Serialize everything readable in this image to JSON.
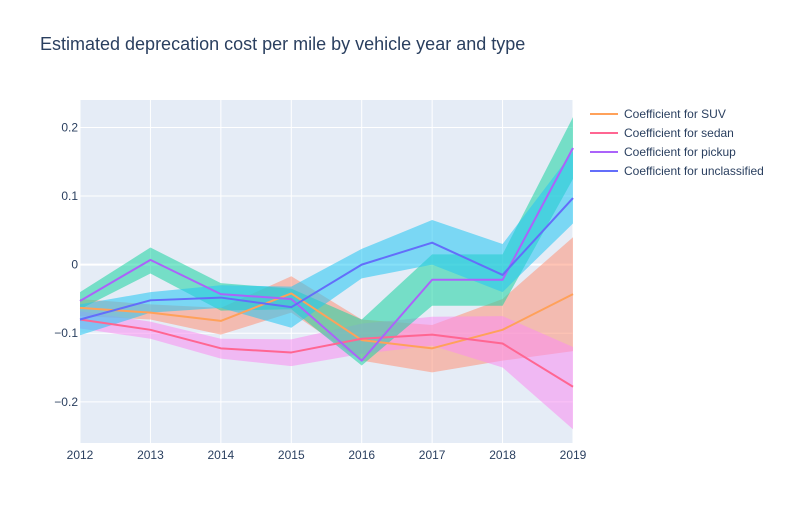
{
  "colors": {
    "plot_bg": "#e5ecf6",
    "grid": "#ffffff",
    "text": "#2a3f5f",
    "series": [
      "#ffa15a",
      "#ff6692",
      "#ab63fa",
      "#636efa"
    ],
    "bands": [
      "#ff9478",
      "#f98ef0",
      "#19d3a1",
      "#23c6f2"
    ]
  },
  "chart_data": {
    "type": "line",
    "title": "Estimated deprecation cost per mile by vehicle year and type",
    "xlabel": "",
    "ylabel": "",
    "x": [
      2012,
      2013,
      2014,
      2015,
      2016,
      2017,
      2018,
      2019
    ],
    "xlim": [
      2012,
      2019
    ],
    "ylim": [
      -0.26,
      0.24
    ],
    "y_ticks": [
      0.2,
      0.1,
      0,
      -0.1,
      -0.2
    ],
    "y_tick_labels": [
      "0.2",
      "0.1",
      "0",
      "−0.1",
      "−0.2"
    ],
    "grid": true,
    "legend_position": "right",
    "series": [
      {
        "name": "Coefficient for SUV",
        "values": [
          -0.063,
          -0.07,
          -0.082,
          -0.042,
          -0.11,
          -0.122,
          -0.095,
          -0.043
        ],
        "lower": [
          -0.075,
          -0.08,
          -0.102,
          -0.07,
          -0.14,
          -0.157,
          -0.14,
          -0.126
        ],
        "upper": [
          -0.05,
          -0.058,
          -0.063,
          -0.017,
          -0.08,
          -0.088,
          -0.05,
          0.04
        ]
      },
      {
        "name": "Coefficient for sedan",
        "values": [
          -0.08,
          -0.095,
          -0.122,
          -0.128,
          -0.108,
          -0.102,
          -0.115,
          -0.178
        ],
        "lower": [
          -0.093,
          -0.108,
          -0.137,
          -0.148,
          -0.13,
          -0.118,
          -0.15,
          -0.24
        ],
        "upper": [
          -0.068,
          -0.083,
          -0.108,
          -0.109,
          -0.086,
          -0.076,
          -0.075,
          -0.12
        ]
      },
      {
        "name": "Coefficient for pickup",
        "values": [
          -0.053,
          0.007,
          -0.043,
          -0.05,
          -0.14,
          -0.022,
          -0.022,
          0.17
        ],
        "lower": [
          -0.065,
          -0.013,
          -0.067,
          -0.065,
          -0.147,
          -0.06,
          -0.06,
          0.125
        ],
        "upper": [
          -0.04,
          0.025,
          -0.027,
          -0.035,
          -0.08,
          0.015,
          0.015,
          0.215
        ]
      },
      {
        "name": "Coefficient for unclassified",
        "values": [
          -0.08,
          -0.052,
          -0.048,
          -0.062,
          0.0,
          0.032,
          -0.015,
          0.097
        ],
        "lower": [
          -0.103,
          -0.07,
          -0.063,
          -0.092,
          -0.02,
          0.0,
          -0.04,
          0.06
        ],
        "upper": [
          -0.058,
          -0.04,
          -0.03,
          -0.032,
          0.023,
          0.065,
          0.03,
          0.165
        ]
      }
    ]
  }
}
